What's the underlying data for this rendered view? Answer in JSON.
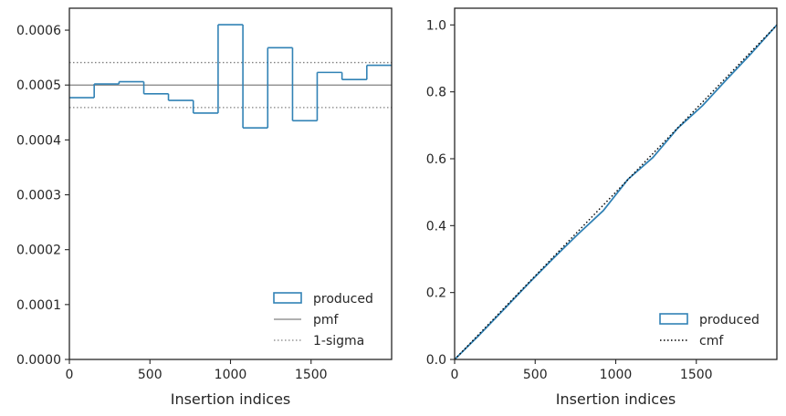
{
  "chart_data": [
    {
      "type": "histogram",
      "xlabel": "Insertion indices",
      "ylabel": "",
      "xlim": [
        0,
        2000
      ],
      "ylim": [
        0,
        0.00064
      ],
      "xticks": [
        0,
        500,
        1000,
        1500
      ],
      "yticks": [
        0.0,
        0.0001,
        0.0002,
        0.0003,
        0.0004,
        0.0005,
        0.0006
      ],
      "ytick_labels": [
        "0.0000",
        "0.0001",
        "0.0002",
        "0.0003",
        "0.0004",
        "0.0005",
        "0.0006"
      ],
      "bin_edges": [
        0,
        154,
        308,
        462,
        615,
        769,
        923,
        1077,
        1231,
        1385,
        1538,
        1692,
        1846,
        2000
      ],
      "values": [
        0.000477,
        0.000502,
        0.000506,
        0.000484,
        0.000472,
        0.000449,
        0.00061,
        0.000422,
        0.000568,
        0.000435,
        0.000523,
        0.00051,
        0.000536
      ],
      "pmf": 0.0005,
      "sigma_band": [
        0.000459,
        0.000541
      ],
      "legend": [
        "produced",
        "pmf",
        "1-sigma"
      ],
      "legend_position": "lower-right",
      "colors": {
        "produced": "#3182b5",
        "pmf": "#808080",
        "sigma": "#808080"
      }
    },
    {
      "type": "line",
      "xlabel": "Insertion indices",
      "ylabel": "",
      "xlim": [
        0,
        2000
      ],
      "ylim": [
        0,
        1.05
      ],
      "xticks": [
        0,
        500,
        1000,
        1500
      ],
      "yticks": [
        0.0,
        0.2,
        0.4,
        0.6,
        0.8,
        1.0
      ],
      "ytick_labels": [
        "0.0",
        "0.2",
        "0.4",
        "0.6",
        "0.8",
        "1.0"
      ],
      "series": [
        {
          "name": "produced",
          "x": [
            0,
            154,
            308,
            462,
            615,
            769,
            923,
            1077,
            1231,
            1385,
            1538,
            1692,
            1846,
            2000
          ],
          "y": [
            0,
            0.0735,
            0.1508,
            0.2288,
            0.3033,
            0.376,
            0.4451,
            0.539,
            0.604,
            0.6915,
            0.7585,
            0.839,
            0.9175,
            1.0
          ]
        },
        {
          "name": "cmf",
          "x": [
            0,
            2000
          ],
          "y": [
            0,
            1.0
          ]
        }
      ],
      "legend": [
        "produced",
        "cmf"
      ],
      "legend_position": "lower-right",
      "colors": {
        "produced": "#3182b5",
        "cmf": "#000000"
      }
    }
  ]
}
